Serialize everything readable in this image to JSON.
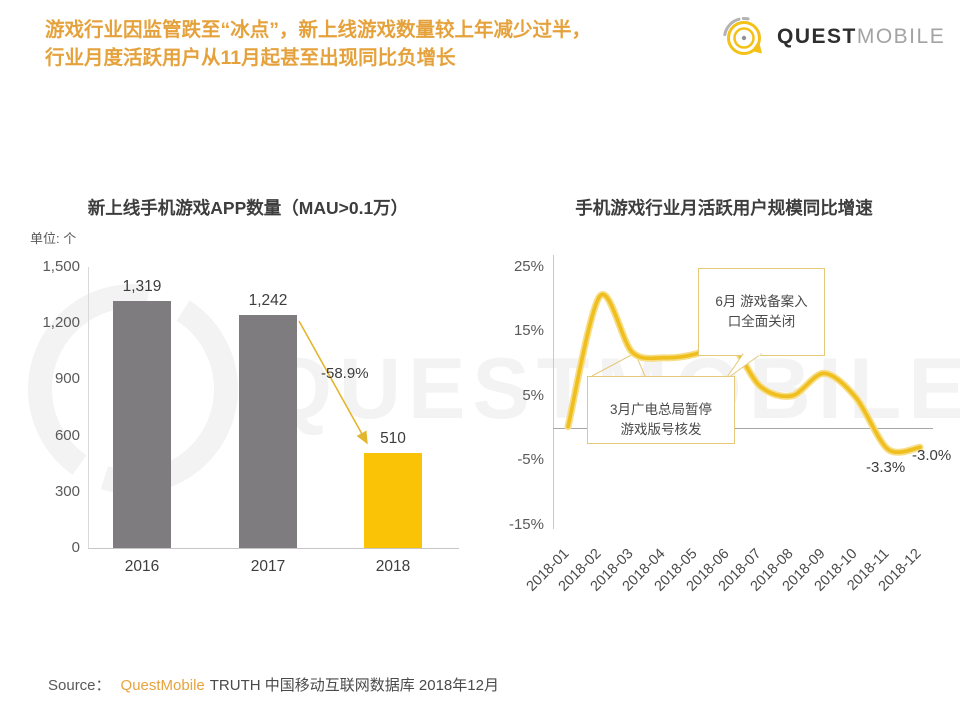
{
  "header": {
    "title_line1": "游戏行业因监管跌至“冰点”，新上线游戏数量较上年减少过半，",
    "title_line2": "行业月度活跃用户从11月起甚至出现同比负增长"
  },
  "logo": {
    "brand_bold": "QUEST",
    "brand_light": "MOBILE"
  },
  "watermark": {
    "text": "QUESTMOBILE"
  },
  "chart_data": [
    {
      "type": "bar",
      "title": "新上线手机游戏APP数量（MAU>0.1万）",
      "unit_label": "单位: 个",
      "categories": [
        "2016",
        "2017",
        "2018"
      ],
      "values": [
        1319,
        1242,
        510
      ],
      "value_labels": [
        "1,319",
        "1,242",
        "510"
      ],
      "bar_colors": [
        "#7E7C7E",
        "#7E7C7E",
        "#FBC306"
      ],
      "ylim": [
        0,
        1500
      ],
      "yticks": [
        "1,500",
        "1,200",
        "900",
        "600",
        "300",
        "0"
      ],
      "grid": false,
      "annotation_label": "-58.9%"
    },
    {
      "type": "line",
      "title": "手机游戏行业月活跃用户规模同比增速",
      "x": [
        "2018-01",
        "2018-02",
        "2018-03",
        "2018-04",
        "2018-05",
        "2018-06",
        "2018-07",
        "2018-08",
        "2018-09",
        "2018-10",
        "2018-11",
        "2018-12"
      ],
      "values_pct": [
        0.2,
        20.5,
        11.8,
        10.9,
        11.5,
        13.5,
        6.5,
        5.0,
        8.5,
        4.7,
        -3.3,
        -3.0
      ],
      "ylim": [
        -15,
        25
      ],
      "yticks": [
        "25%",
        "15%",
        "5%",
        "-5%",
        "-15%"
      ],
      "line_color": "#EFBE1F",
      "grid": false,
      "legend": false,
      "point_labels": [
        {
          "x": "2018-11",
          "label": "-3.3%"
        },
        {
          "x": "2018-12",
          "label": "-3.0%"
        }
      ],
      "callouts": [
        {
          "text": "6月 游戏备案入\n口全面关闭"
        },
        {
          "text": "3月广电总局暂停\n游戏版号核发"
        }
      ]
    }
  ],
  "footer": {
    "source_prefix": "Source：",
    "source_brand": "QuestMobile",
    "source_rest": "TRUTH 中国移动互联网数据库 2018年12月"
  },
  "colors": {
    "accent_orange": "#E5A23C",
    "bar_gray": "#7E7C7E",
    "highlight_yellow": "#FBC306",
    "line_gold": "#EFBE1F"
  }
}
